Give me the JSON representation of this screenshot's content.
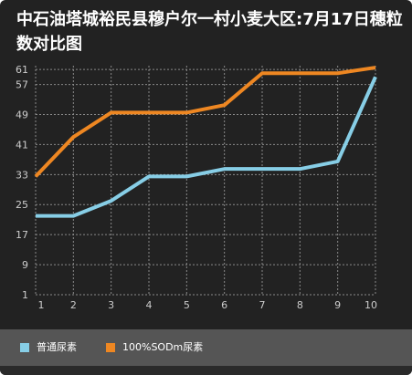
{
  "colors": {
    "background": "#222222",
    "grid": "#8a8a8a",
    "text": "#ffffff",
    "tick": "#cccccc",
    "series_1": "#87cee6",
    "series_2": "#ee8722",
    "legend_bg": "#555555"
  },
  "chart_data": {
    "type": "line",
    "title": "中石油塔城裕民县穆户尔一村小麦大区:7月17日穗粒数对比图",
    "x": [
      1,
      2,
      3,
      4,
      5,
      6,
      7,
      8,
      9,
      10
    ],
    "xlim": [
      1,
      10
    ],
    "ylim": [
      1,
      62
    ],
    "yticks": [
      1,
      9,
      17,
      25,
      33,
      41,
      49,
      57,
      61
    ],
    "grid": true,
    "legend_position": "bottom-left",
    "series": [
      {
        "name": "普通尿素",
        "color": "#87cee6",
        "values": [
          22,
          22,
          26,
          32.5,
          32.5,
          34.5,
          34.5,
          34.5,
          36.5,
          59
        ]
      },
      {
        "name": "100%SODm尿素",
        "color": "#ee8722",
        "values": [
          32.5,
          43,
          49.5,
          49.5,
          49.5,
          51.5,
          60,
          60,
          60,
          61.5
        ]
      }
    ]
  }
}
